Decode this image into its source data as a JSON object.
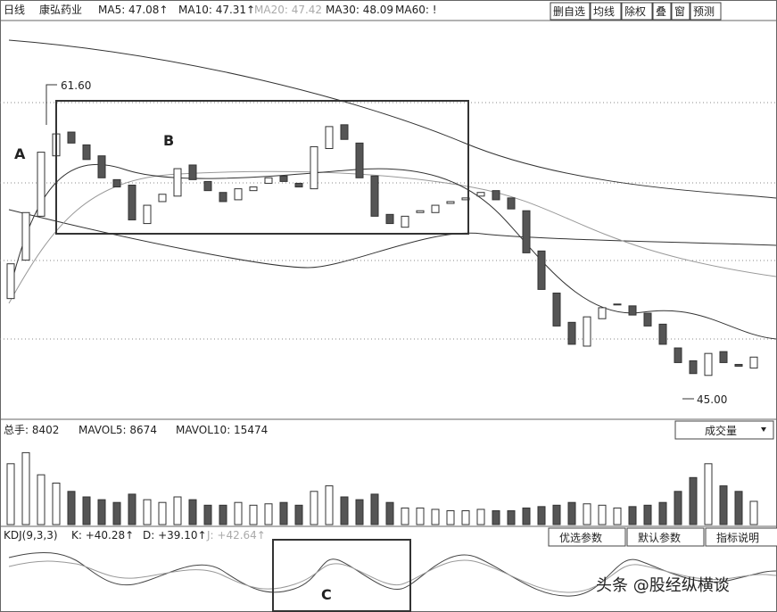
{
  "toolbar": {
    "period": "日线",
    "stock": "康弘药业",
    "ma": [
      "MA5: 47.08↑",
      "MA10: 47.31↑",
      "MA20: 47.42",
      "MA30: 48.09",
      "MA60: !"
    ],
    "buttons": [
      "删自选",
      "均线",
      "除权",
      "叠",
      "窗",
      "预测"
    ]
  },
  "volume_header": {
    "total": "总手: 8402",
    "mavol5": "MAVOL5: 8674",
    "mavol10": "MAVOL10: 15474",
    "dropdown": "成交量"
  },
  "kdj_header": {
    "name": "KDJ(9,3,3)",
    "k": "K: +40.28↑",
    "d": "D: +39.10↑",
    "j": "J: +42.64↑",
    "buttons": [
      "优选参数",
      "默认参数",
      "指标说明"
    ]
  },
  "annotations": {
    "a": "A",
    "b": "B",
    "c": "C",
    "high": "61.60",
    "low": "45.00",
    "watermark": "头条 @股经纵横谈"
  },
  "chart_data": {
    "type": "candlestick",
    "open": [
      50.5,
      52.6,
      55.0,
      58.3,
      59.6,
      58.9,
      58.3,
      57.0,
      56.7,
      54.6,
      55.8,
      56.1,
      57.8,
      56.9,
      56.3,
      55.9,
      56.4,
      56.8,
      57.2,
      56.8,
      56.5,
      58.7,
      60.0,
      59.0,
      57.2,
      55.1,
      54.4,
      55.2,
      55.2,
      55.7,
      55.9,
      56.1,
      56.4,
      56.0,
      55.3,
      53.1,
      50.8,
      49.2,
      47.9,
      49.4,
      50.2,
      50.1,
      49.7,
      49.1,
      47.8,
      47.1,
      46.3,
      47.6,
      46.9,
      46.7
    ],
    "close": [
      52.4,
      55.2,
      58.5,
      59.5,
      59.0,
      58.1,
      57.1,
      56.6,
      54.8,
      55.6,
      56.2,
      57.6,
      57.0,
      56.4,
      55.8,
      56.5,
      56.6,
      57.1,
      56.9,
      56.6,
      58.8,
      59.9,
      59.2,
      57.1,
      55.0,
      54.6,
      55.0,
      55.3,
      55.6,
      55.8,
      56.0,
      56.3,
      55.9,
      55.4,
      53.0,
      51.0,
      49.0,
      48.0,
      49.5,
      50.0,
      50.2,
      49.6,
      49.0,
      48.0,
      47.0,
      46.4,
      47.5,
      47.0,
      46.8,
      47.3
    ],
    "volume": [
      22000,
      26000,
      18000,
      15000,
      12000,
      10000,
      9000,
      8000,
      11000,
      9000,
      8000,
      10000,
      9000,
      7000,
      7000,
      8000,
      7000,
      7500,
      8000,
      7000,
      12000,
      14000,
      10000,
      9000,
      11000,
      8000,
      6000,
      6000,
      5500,
      5000,
      5000,
      5500,
      5000,
      5000,
      6000,
      6500,
      7000,
      8000,
      7500,
      7000,
      6000,
      6500,
      7000,
      8000,
      12000,
      17000,
      22000,
      14000,
      12000,
      8402
    ],
    "ylim": [
      43.9,
      65.6
    ],
    "volume_ylim": [
      0,
      30000
    ]
  }
}
